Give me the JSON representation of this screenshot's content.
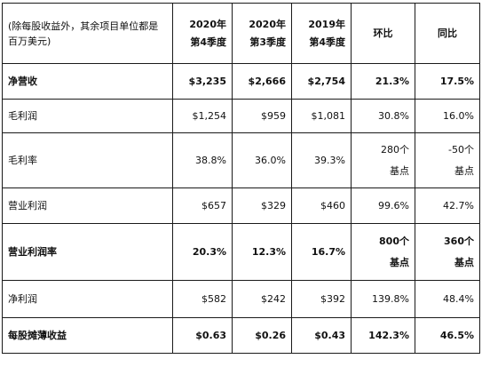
{
  "table": {
    "header": {
      "label_line1": "(除每股收益外，其余项目单位都是",
      "label_line2": "百万美元)",
      "columns": [
        {
          "line1": "2020年",
          "line2": "第4季度"
        },
        {
          "line1": "2020年",
          "line2": "第3季度"
        },
        {
          "line1": "2019年",
          "line2": "第4季度"
        },
        {
          "line1": "环比",
          "line2": ""
        },
        {
          "line1": "同比",
          "line2": ""
        }
      ]
    },
    "rows": [
      {
        "label": "净营收",
        "bold": true,
        "cells": [
          "$3,235",
          "$2,666",
          "$2,754",
          "21.3%",
          "17.5%"
        ]
      },
      {
        "label": "毛利润",
        "bold": false,
        "cells": [
          "$1,254",
          "$959",
          "$1,081",
          "30.8%",
          "16.0%"
        ]
      },
      {
        "label": "毛利率",
        "bold": false,
        "cells": [
          "38.8%",
          "36.0%",
          "39.3%",
          "280个",
          "-50个"
        ],
        "extra": [
          "",
          "",
          "",
          "基点",
          "基点"
        ]
      },
      {
        "label": "营业利润",
        "bold": false,
        "cells": [
          "$657",
          "$329",
          "$460",
          "99.6%",
          "42.7%"
        ]
      },
      {
        "label": "营业利润率",
        "bold": true,
        "cells": [
          "20.3%",
          "12.3%",
          "16.7%",
          "800个",
          "360个"
        ],
        "extra": [
          "",
          "",
          "",
          "基点",
          "基点"
        ]
      },
      {
        "label": "净利润",
        "bold": false,
        "cells": [
          "$582",
          "$242",
          "$392",
          "139.8%",
          "48.4%"
        ]
      },
      {
        "label": "每股摊薄收益",
        "bold": true,
        "cells": [
          "$0.63",
          "$0.26",
          "$0.43",
          "142.3%",
          "46.5%"
        ]
      }
    ]
  }
}
